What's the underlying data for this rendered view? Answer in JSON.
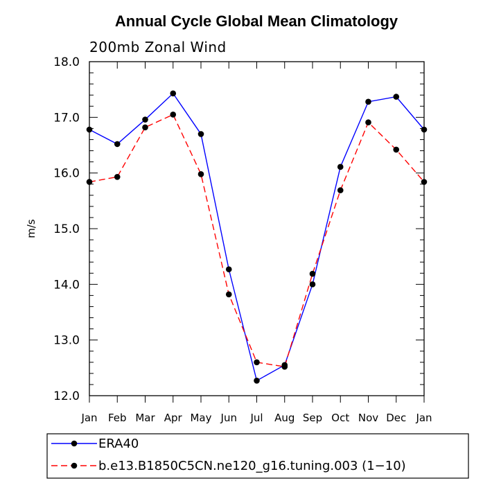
{
  "chart_data": {
    "type": "line",
    "title": "Annual Cycle Global Mean Climatology",
    "subtitle": "200mb Zonal Wind",
    "ylabel": "m/s",
    "xlabel": "",
    "categories": [
      "Jan",
      "Feb",
      "Mar",
      "Apr",
      "May",
      "Jun",
      "Jul",
      "Aug",
      "Sep",
      "Oct",
      "Nov",
      "Dec",
      "Jan"
    ],
    "ylim": [
      12.0,
      18.0
    ],
    "yticks": [
      12.0,
      13.0,
      14.0,
      15.0,
      16.0,
      17.0,
      18.0
    ],
    "ytick_labels": [
      "12.0",
      "13.0",
      "14.0",
      "15.0",
      "16.0",
      "17.0",
      "18.0"
    ],
    "legend_position": "below plot",
    "series": [
      {
        "name": "ERA40",
        "color": "#0000ff",
        "line_style": "solid",
        "marker": "filled-circle",
        "values": [
          16.78,
          16.52,
          16.96,
          17.43,
          16.7,
          14.27,
          12.27,
          12.55,
          14.0,
          16.11,
          17.28,
          17.37,
          16.78
        ]
      },
      {
        "name": "b.e13.B1850C5CN.ne120_g16.tuning.003 (1−10)",
        "color": "#ff0000",
        "line_style": "dashed",
        "marker": "filled-circle",
        "values": [
          15.84,
          15.93,
          16.82,
          17.05,
          15.98,
          13.82,
          12.6,
          12.52,
          14.19,
          15.69,
          16.91,
          16.42,
          15.84
        ]
      }
    ]
  }
}
